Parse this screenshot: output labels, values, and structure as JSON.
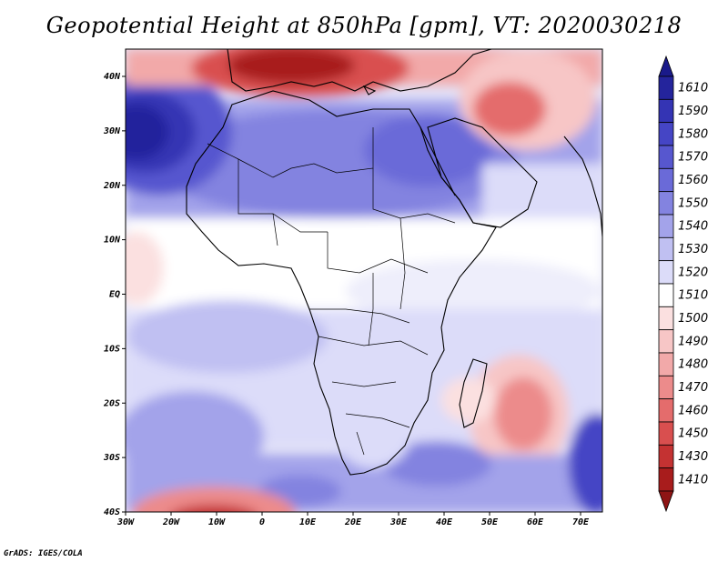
{
  "title": "Geopotential Height at 850hPa [gpm], VT: 2020030218",
  "credit": "GrADS: IGES/COLA",
  "map": {
    "lon_range": [
      -30,
      75
    ],
    "lat_range": [
      -40,
      45
    ],
    "lat_ticks": [
      "40N",
      "30N",
      "20N",
      "10N",
      "EQ",
      "10S",
      "20S",
      "30S",
      "40S"
    ],
    "lon_ticks": [
      "30W",
      "20W",
      "10W",
      "0",
      "10E",
      "20E",
      "30E",
      "40E",
      "50E",
      "60E",
      "70E"
    ]
  },
  "colorbar": {
    "levels": [
      "1610",
      "1590",
      "1580",
      "1570",
      "1560",
      "1550",
      "1540",
      "1530",
      "1520",
      "1510",
      "1500",
      "1490",
      "1480",
      "1470",
      "1460",
      "1450",
      "1430",
      "1410"
    ],
    "colors": [
      "#24249c",
      "#3434b4",
      "#4545c5",
      "#5757cf",
      "#6a6ad8",
      "#8383e0",
      "#a3a3ea",
      "#c0c0f2",
      "#dcdcf9",
      "#ffffff",
      "#fbe0e0",
      "#f7c6c6",
      "#f2a9a9",
      "#ec8b8b",
      "#e46c6c",
      "#d94f4f",
      "#c43232",
      "#a81c1c"
    ],
    "top_color": "#1a1a8a",
    "bottom_color": "#8e1414"
  }
}
